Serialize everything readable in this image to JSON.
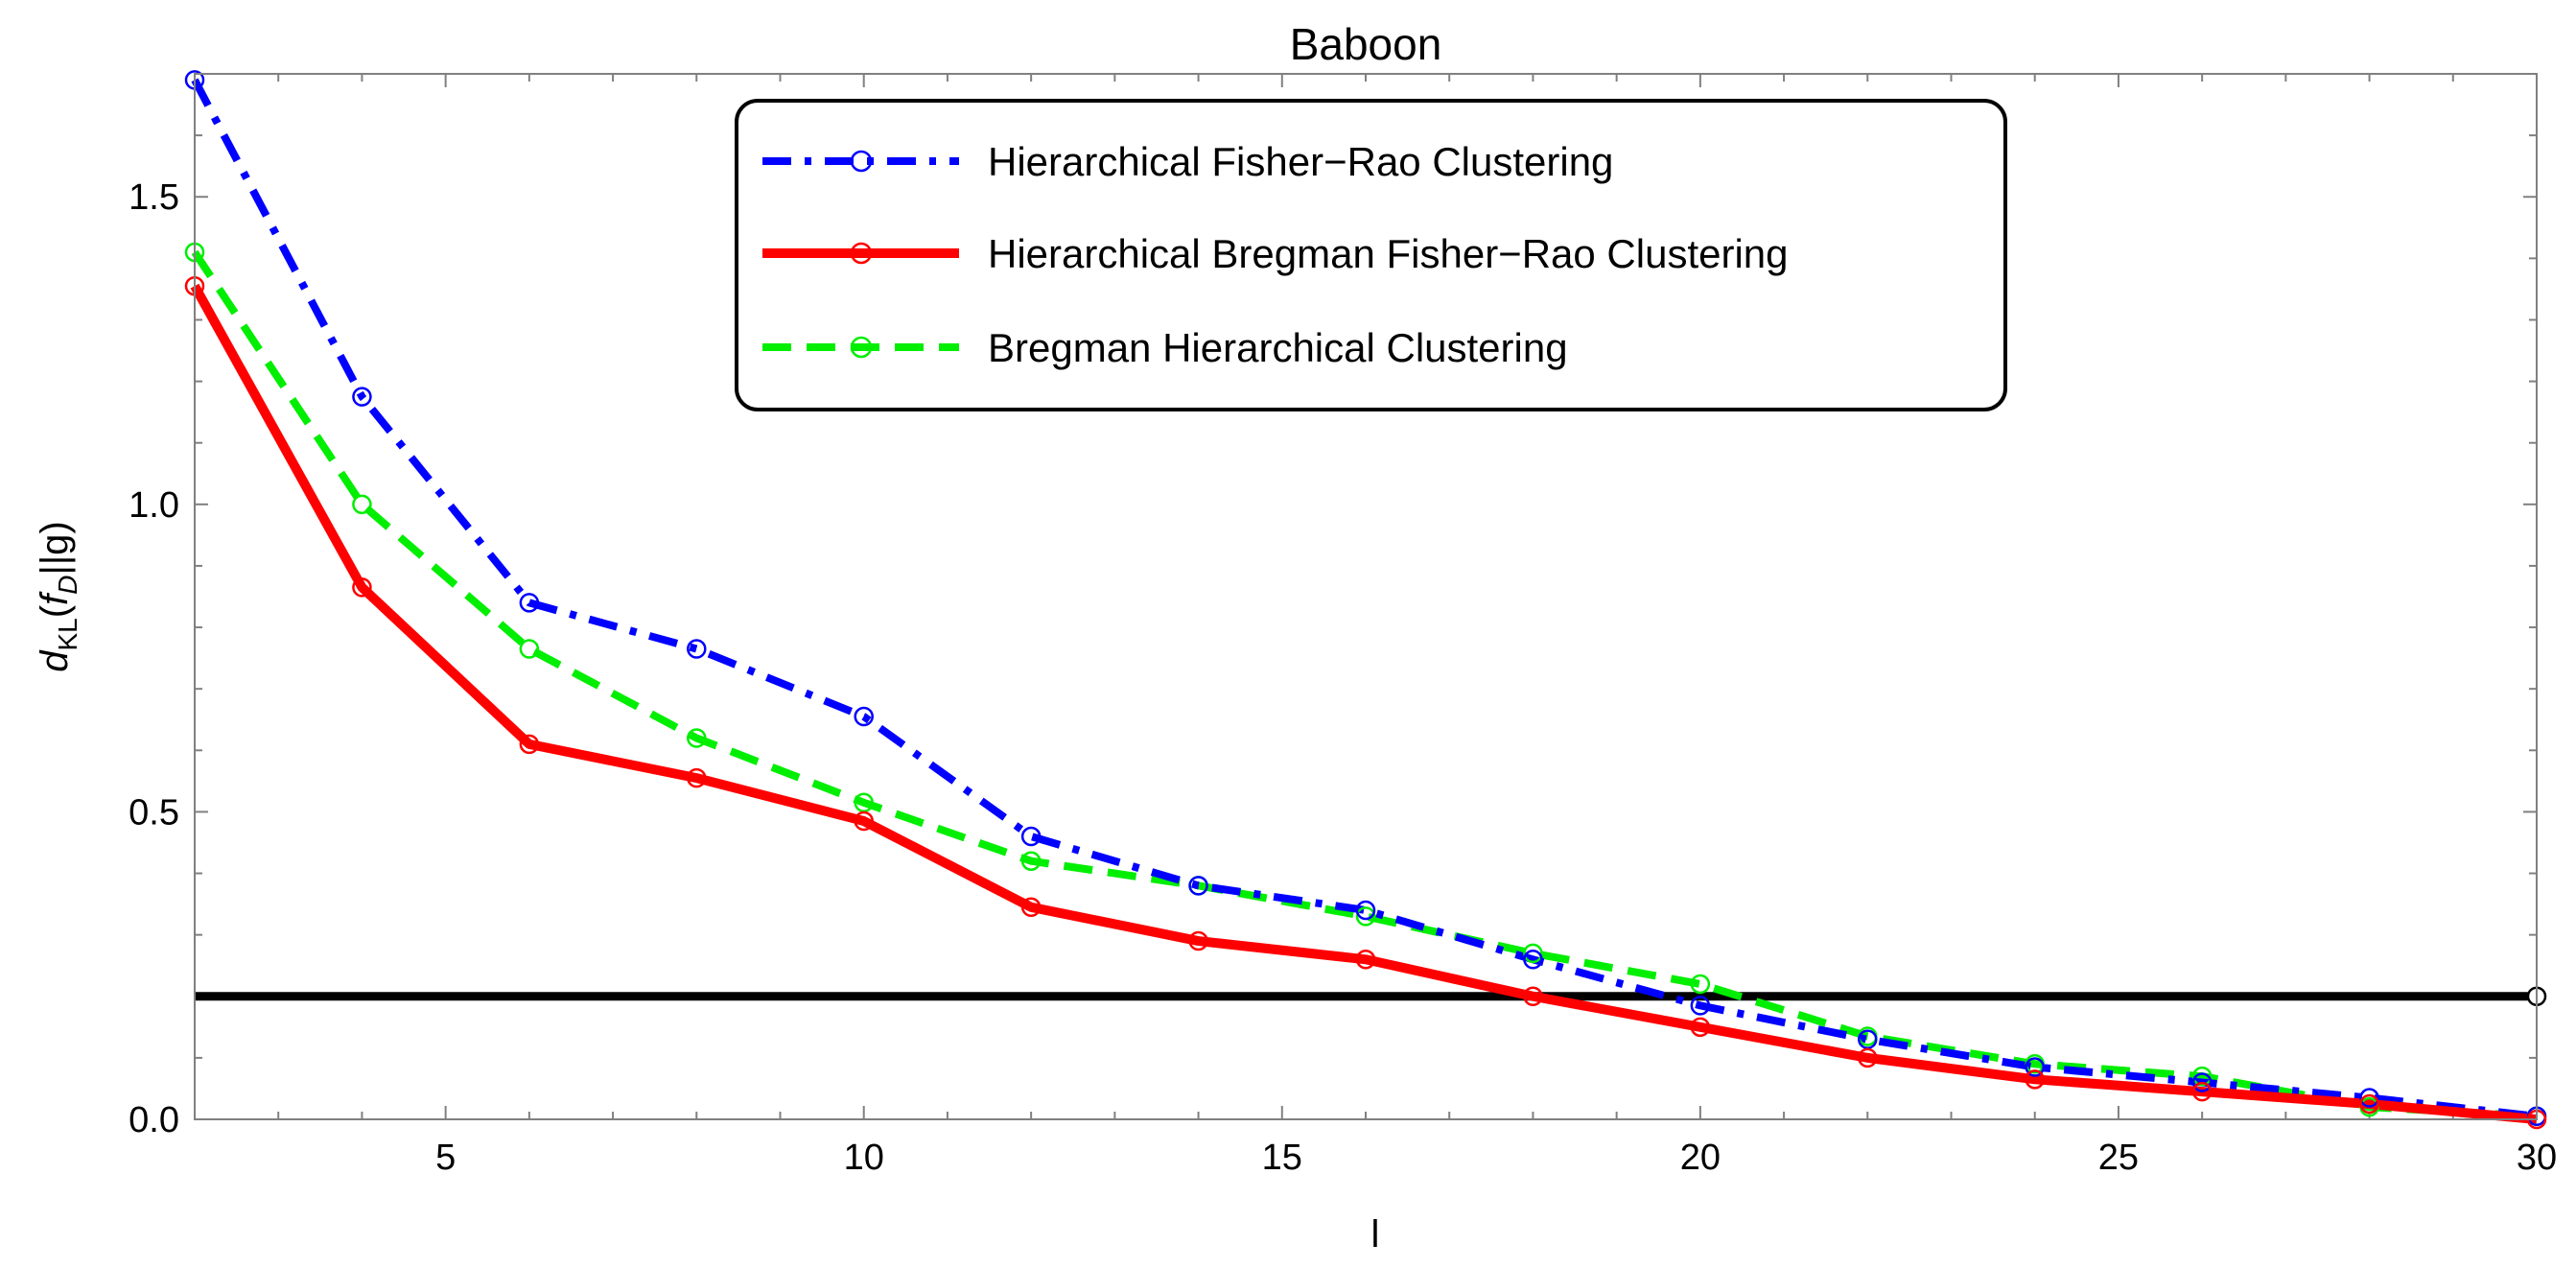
{
  "chart_data": {
    "type": "line",
    "title": "Baboon",
    "xlabel": "l",
    "ylabel": {
      "d": "d",
      "sub": "KL",
      "open": "(",
      "f": "f",
      "fsub": "D",
      "tail": "||g)"
    },
    "xlim": [
      2,
      30
    ],
    "ylim": [
      0,
      1.7
    ],
    "xticks": [
      5,
      10,
      15,
      20,
      25,
      30
    ],
    "yticks": [
      0.0,
      0.5,
      1.0,
      1.5
    ],
    "ytick_labels": [
      "0.0",
      "0.5",
      "1.0",
      "1.5"
    ],
    "x": [
      2,
      4,
      6,
      8,
      10,
      12,
      14,
      16,
      18,
      20,
      22,
      24,
      26,
      28,
      30
    ],
    "series": [
      {
        "name": "Hierarchical Fisher-Rao Clustering",
        "legend_label": "Hierarchical Fisher−Rao Clustering",
        "color": "#0000ff",
        "style": "dashdot",
        "values": [
          1.69,
          1.175,
          0.84,
          0.765,
          0.655,
          0.46,
          0.38,
          0.34,
          0.26,
          0.185,
          0.13,
          0.085,
          0.06,
          0.035,
          0.005
        ]
      },
      {
        "name": "Hierarchical Bregman Fisher-Rao Clustering",
        "legend_label": "Hierarchical Bregman Fisher−Rao Clustering",
        "color": "#ff0000",
        "style": "solid",
        "values": [
          1.355,
          0.865,
          0.61,
          0.555,
          0.485,
          0.345,
          0.29,
          0.26,
          0.2,
          0.15,
          0.1,
          0.065,
          0.045,
          0.025,
          0.0
        ]
      },
      {
        "name": "Bregman Hierarchical Clustering",
        "legend_label": "Bregman Hierarchical Clustering",
        "color": "#00ee00",
        "style": "dashed",
        "values": [
          1.41,
          1.0,
          0.765,
          0.62,
          0.515,
          0.42,
          0.38,
          0.33,
          0.27,
          0.22,
          0.135,
          0.09,
          0.07,
          0.02,
          0.005
        ]
      }
    ],
    "reference_line": {
      "y": 0.2,
      "color": "#000000"
    },
    "legend_position": "top-center"
  }
}
